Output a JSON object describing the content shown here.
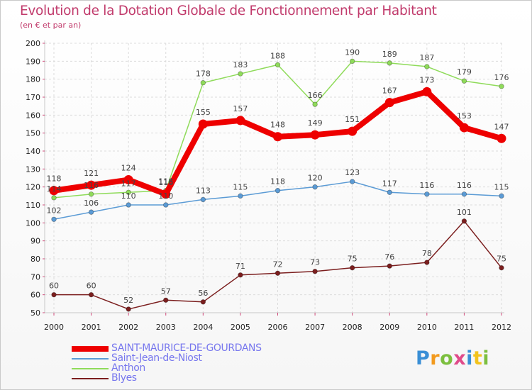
{
  "chart_data": {
    "type": "line",
    "title": "Evolution de la Dotation Globale de Fonctionnement par Habitant",
    "subtitle": "(en € et par an)",
    "xlabel": "",
    "ylabel": "",
    "ylim": [
      50,
      200
    ],
    "yticks": [
      50,
      60,
      70,
      80,
      90,
      100,
      110,
      120,
      130,
      140,
      150,
      160,
      170,
      180,
      190,
      200
    ],
    "x": [
      "2000",
      "2001",
      "2002",
      "2003",
      "2004",
      "2005",
      "2006",
      "2007",
      "2008",
      "2009",
      "2010",
      "2011",
      "2012"
    ],
    "grid": true,
    "series": [
      {
        "name": "SAINT-MAURICE-DE-GOURDANS",
        "color": "#ee0000",
        "values": [
          118,
          121,
          124,
          116,
          155,
          157,
          148,
          149,
          151,
          167,
          173,
          153,
          147
        ],
        "labels": [
          "118",
          "121",
          "124",
          "116",
          "155",
          "157",
          "148",
          "149",
          "151",
          "167",
          "173",
          "153",
          "147"
        ]
      },
      {
        "name": "Saint-Jean-de-Niost",
        "color": "#5b9bd5",
        "values": [
          102,
          106,
          110,
          110,
          113,
          115,
          118,
          120,
          123,
          117,
          116,
          116,
          115
        ],
        "labels": [
          "102",
          "106",
          "110",
          "110",
          "113",
          "115",
          "118",
          "120",
          "123",
          "117",
          "116",
          "116",
          "115"
        ]
      },
      {
        "name": "Anthon",
        "color": "#8fdb5a",
        "values": [
          114,
          116,
          117,
          118,
          178,
          183,
          188,
          166,
          190,
          189,
          187,
          179,
          176
        ],
        "labels": [
          "114",
          "116",
          "117",
          "118",
          "178",
          "183",
          "188",
          "166",
          "190",
          "189",
          "187",
          "179",
          "176"
        ]
      },
      {
        "name": "Blyes",
        "color": "#7b1e1e",
        "values": [
          60,
          60,
          52,
          57,
          56,
          71,
          72,
          73,
          75,
          76,
          78,
          101,
          75
        ],
        "labels": [
          "60",
          "60",
          "52",
          "57",
          "56",
          "71",
          "72",
          "73",
          "75",
          "76",
          "78",
          "101",
          "75"
        ]
      }
    ]
  },
  "legend": [
    {
      "label": "SAINT-MAURICE-DE-GOURDANS",
      "color": "#ee0000"
    },
    {
      "label": "Saint-Jean-de-Niost",
      "color": "#5b9bd5"
    },
    {
      "label": "Anthon",
      "color": "#8fdb5a"
    },
    {
      "label": "Blyes",
      "color": "#7b1e1e"
    }
  ],
  "logo": {
    "text": "Proxiti"
  }
}
